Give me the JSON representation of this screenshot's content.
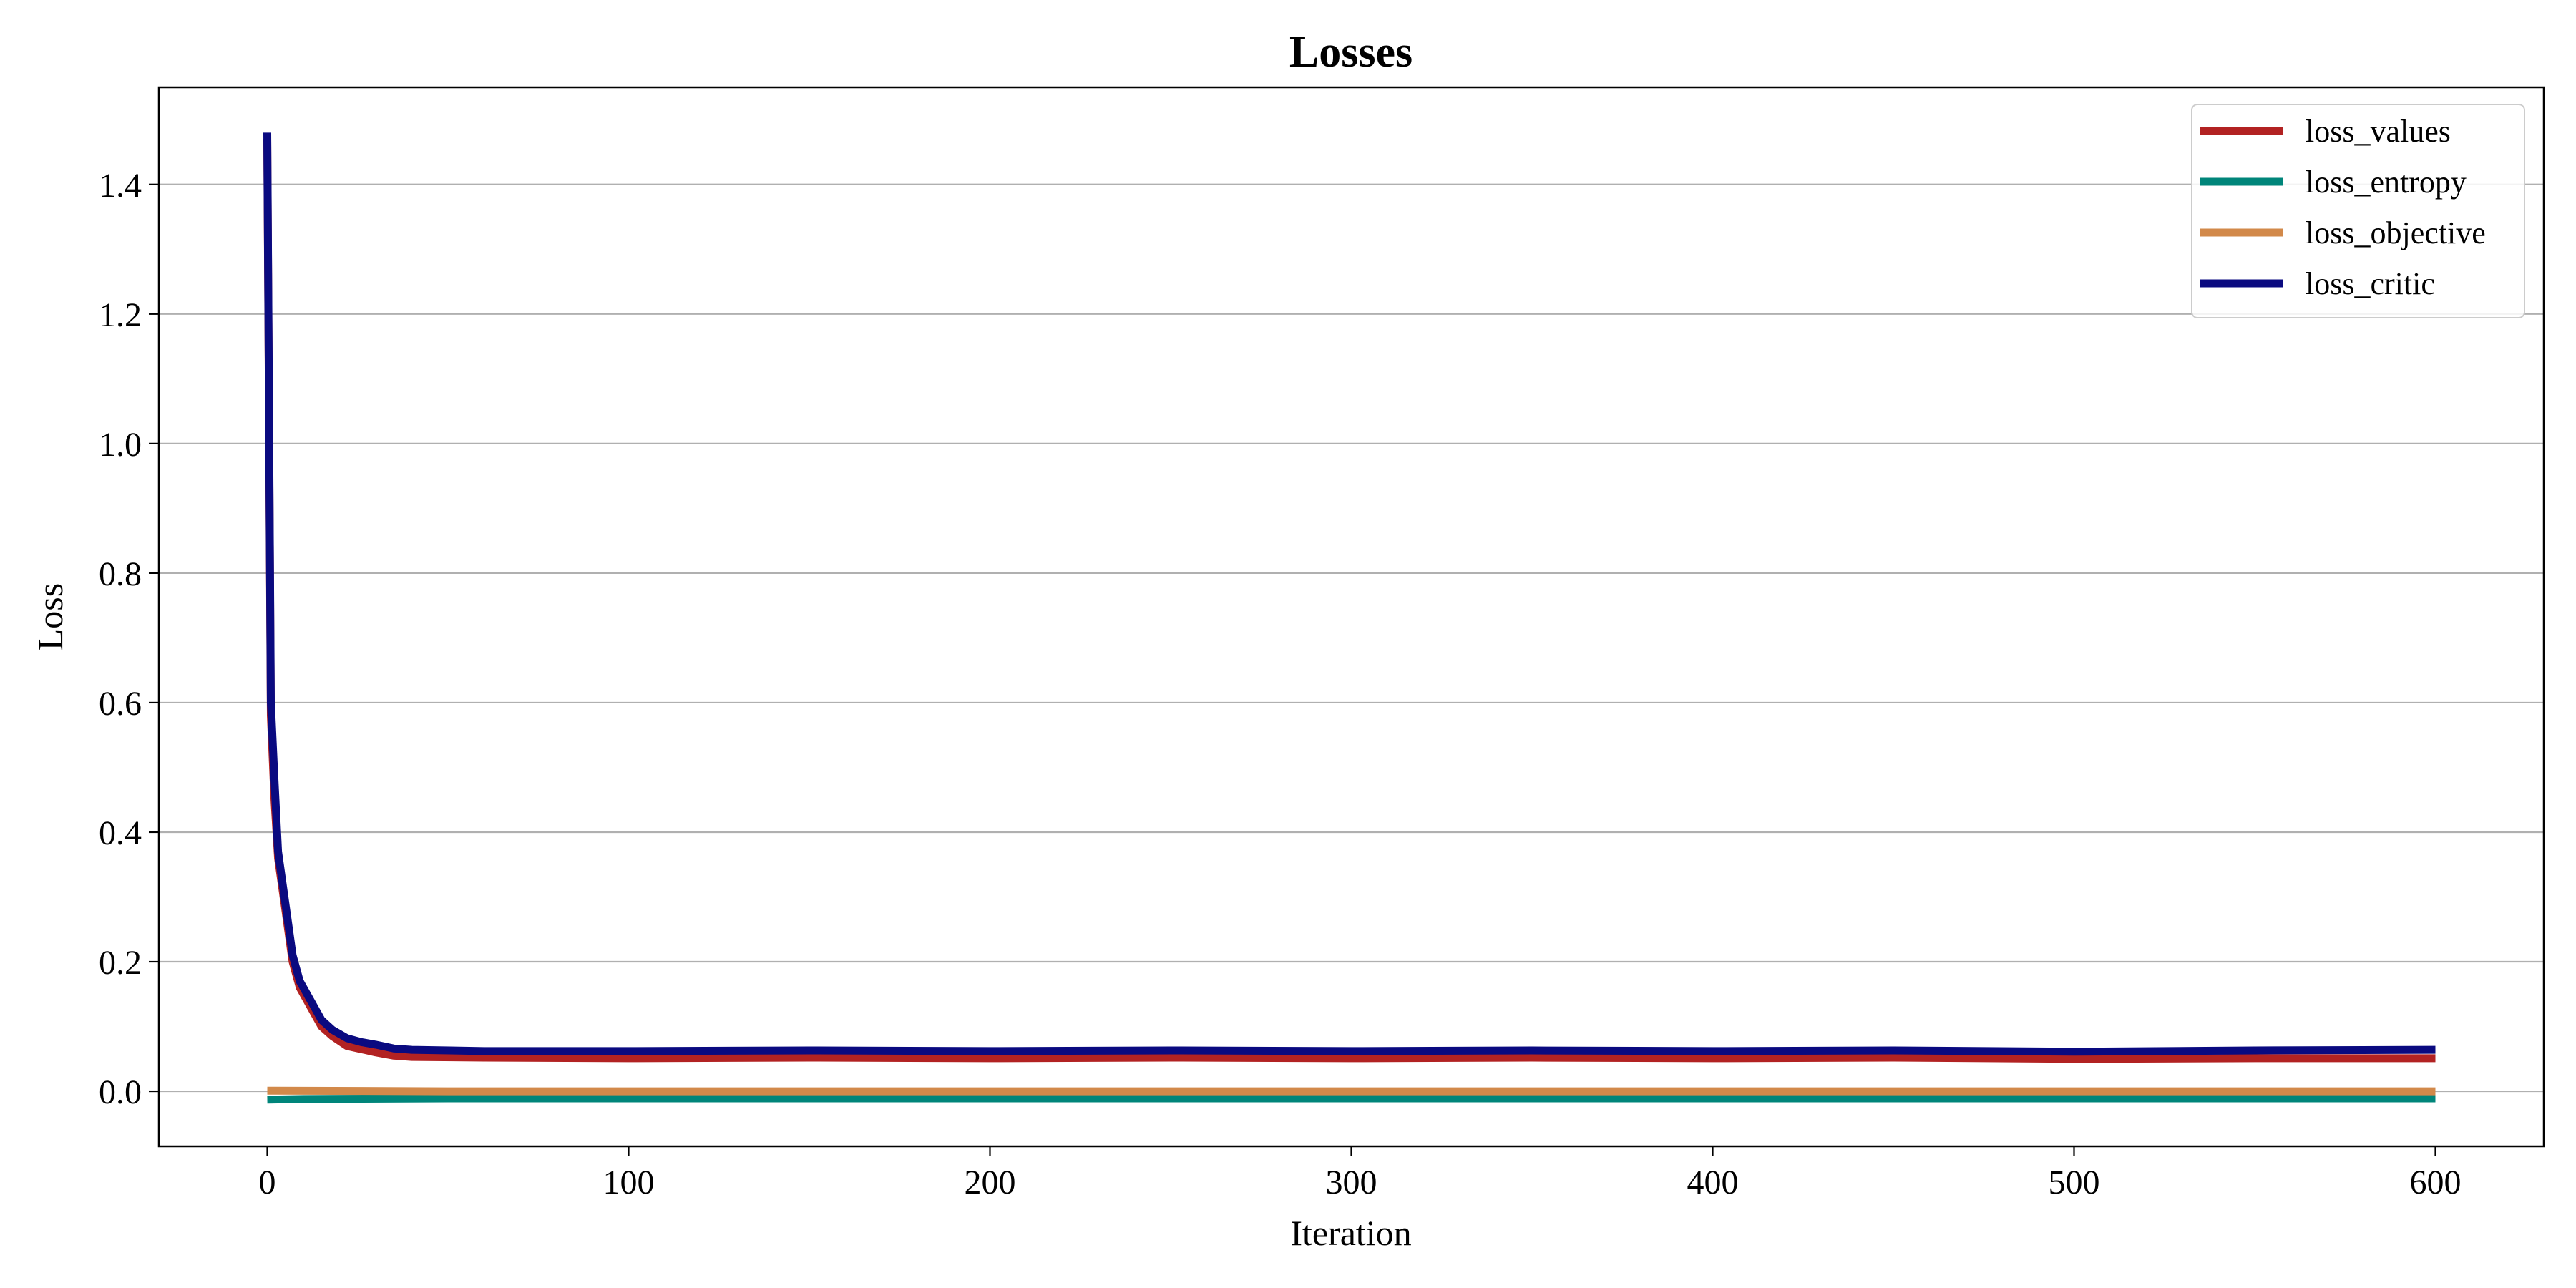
{
  "chart_data": {
    "type": "line",
    "title": "Losses",
    "xlabel": "Iteration",
    "ylabel": "Loss",
    "xlim": [
      -30,
      630
    ],
    "ylim": [
      -0.085,
      1.55
    ],
    "xticks": [
      0,
      100,
      200,
      300,
      400,
      500,
      600
    ],
    "yticks": [
      0.0,
      0.2,
      0.4,
      0.6,
      0.8,
      1.0,
      1.2,
      1.4
    ],
    "grid": "horizontal",
    "legend_position": "top-right",
    "series": [
      {
        "name": "loss_values",
        "color": "#b22222",
        "points": [
          [
            0,
            1.47
          ],
          [
            1,
            0.58
          ],
          [
            2,
            0.45
          ],
          [
            3,
            0.36
          ],
          [
            5,
            0.28
          ],
          [
            7,
            0.2
          ],
          [
            9,
            0.16
          ],
          [
            12,
            0.13
          ],
          [
            15,
            0.1
          ],
          [
            18,
            0.085
          ],
          [
            22,
            0.07
          ],
          [
            26,
            0.065
          ],
          [
            30,
            0.06
          ],
          [
            35,
            0.055
          ],
          [
            40,
            0.053
          ],
          [
            60,
            0.052
          ],
          [
            100,
            0.051
          ],
          [
            150,
            0.052
          ],
          [
            200,
            0.051
          ],
          [
            250,
            0.052
          ],
          [
            300,
            0.051
          ],
          [
            350,
            0.052
          ],
          [
            400,
            0.051
          ],
          [
            450,
            0.052
          ],
          [
            500,
            0.05
          ],
          [
            550,
            0.051
          ],
          [
            600,
            0.051
          ]
        ]
      },
      {
        "name": "loss_entropy",
        "color": "#00857a",
        "points": [
          [
            0,
            -0.013
          ],
          [
            10,
            -0.012
          ],
          [
            50,
            -0.011
          ],
          [
            100,
            -0.011
          ],
          [
            200,
            -0.011
          ],
          [
            300,
            -0.011
          ],
          [
            400,
            -0.011
          ],
          [
            500,
            -0.011
          ],
          [
            600,
            -0.011
          ]
        ]
      },
      {
        "name": "loss_objective",
        "color": "#d2894a",
        "points": [
          [
            0,
            0.001
          ],
          [
            50,
            0.0
          ],
          [
            100,
            0.0
          ],
          [
            200,
            0.0
          ],
          [
            300,
            0.0
          ],
          [
            400,
            0.0
          ],
          [
            500,
            0.0
          ],
          [
            600,
            0.0
          ]
        ]
      },
      {
        "name": "loss_critic",
        "color": "#0a0a80",
        "points": [
          [
            0,
            1.48
          ],
          [
            1,
            0.6
          ],
          [
            2,
            0.48
          ],
          [
            3,
            0.37
          ],
          [
            5,
            0.29
          ],
          [
            7,
            0.21
          ],
          [
            9,
            0.17
          ],
          [
            12,
            0.14
          ],
          [
            15,
            0.11
          ],
          [
            18,
            0.095
          ],
          [
            22,
            0.082
          ],
          [
            26,
            0.076
          ],
          [
            30,
            0.072
          ],
          [
            35,
            0.066
          ],
          [
            40,
            0.064
          ],
          [
            60,
            0.062
          ],
          [
            100,
            0.062
          ],
          [
            150,
            0.063
          ],
          [
            200,
            0.062
          ],
          [
            250,
            0.063
          ],
          [
            300,
            0.062
          ],
          [
            350,
            0.063
          ],
          [
            400,
            0.062
          ],
          [
            450,
            0.063
          ],
          [
            500,
            0.061
          ],
          [
            550,
            0.063
          ],
          [
            600,
            0.064
          ]
        ]
      }
    ]
  }
}
